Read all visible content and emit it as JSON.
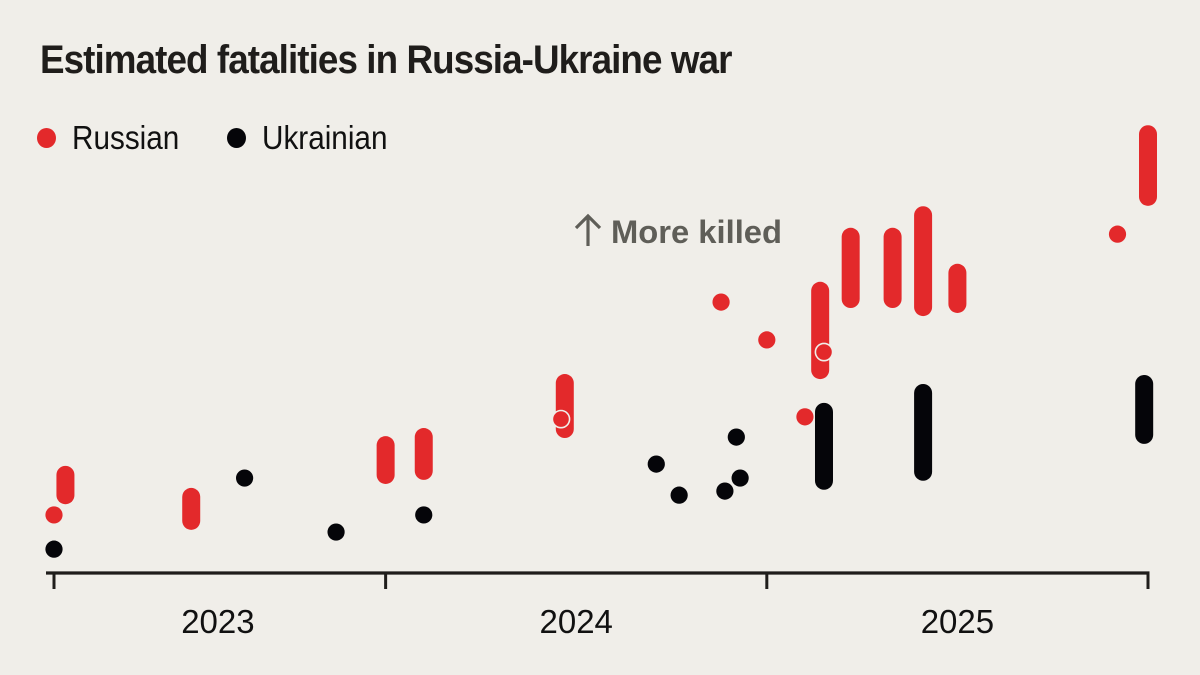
{
  "chart_data": {
    "type": "scatter",
    "title": "Estimated fatalities in Russia-Ukraine war",
    "xlabel": "",
    "ylabel": "",
    "annotation": "More killed",
    "annotation_icon": "arrow-up-icon",
    "x_range": [
      2023.13,
      2026.0
    ],
    "y_range": [
      0,
      100
    ],
    "y_unit": "relative (no y-axis shown)",
    "x_ticks": [
      2023.13,
      2024.0,
      2025.0,
      2026.0
    ],
    "x_tick_labels": [
      {
        "label": "2023",
        "at": 2023.56
      },
      {
        "label": "2024",
        "at": 2024.5
      },
      {
        "label": "2025",
        "at": 2025.5
      }
    ],
    "grid": false,
    "legend_position": "top-left",
    "series": [
      {
        "name": "Russian",
        "color": "#e3292b",
        "points": [
          {
            "x": 2023.13,
            "y": 12.9
          },
          {
            "x": 2023.16,
            "low": 16.4,
            "high": 22.7
          },
          {
            "x": 2023.49,
            "low": 10.7,
            "high": 17.8
          },
          {
            "x": 2024.0,
            "low": 20.9,
            "high": 29.3
          },
          {
            "x": 2024.1,
            "low": 21.8,
            "high": 31.1
          },
          {
            "x": 2024.47,
            "low": 31.1,
            "high": 43.1
          },
          {
            "x": 2024.46,
            "y": 34.2,
            "outlined": true
          },
          {
            "x": 2024.88,
            "y": 60.2
          },
          {
            "x": 2025.0,
            "y": 51.8
          },
          {
            "x": 2025.1,
            "y": 34.7
          },
          {
            "x": 2025.14,
            "low": 44.2,
            "high": 63.6
          },
          {
            "x": 2025.15,
            "y": 49.1,
            "outlined": true
          },
          {
            "x": 2025.22,
            "low": 60.0,
            "high": 75.6
          },
          {
            "x": 2025.33,
            "low": 60.0,
            "high": 75.6
          },
          {
            "x": 2025.41,
            "low": 58.2,
            "high": 80.4
          },
          {
            "x": 2025.5,
            "low": 58.9,
            "high": 67.6
          },
          {
            "x": 2025.92,
            "y": 75.3
          },
          {
            "x": 2026.0,
            "low": 82.7,
            "high": 98.4
          }
        ]
      },
      {
        "name": "Ukrainian",
        "color": "#050509",
        "points": [
          {
            "x": 2023.13,
            "y": 5.3
          },
          {
            "x": 2023.63,
            "y": 21.1
          },
          {
            "x": 2023.87,
            "y": 9.1
          },
          {
            "x": 2024.1,
            "y": 12.9
          },
          {
            "x": 2024.71,
            "y": 24.2
          },
          {
            "x": 2024.77,
            "y": 17.3
          },
          {
            "x": 2024.89,
            "y": 18.2
          },
          {
            "x": 2024.93,
            "y": 21.1
          },
          {
            "x": 2024.92,
            "y": 30.2
          },
          {
            "x": 2025.15,
            "low": 19.6,
            "high": 36.7
          },
          {
            "x": 2025.41,
            "low": 21.6,
            "high": 40.9
          },
          {
            "x": 2025.99,
            "low": 29.8,
            "high": 42.9
          }
        ]
      }
    ]
  },
  "colors": {
    "background": "#f0eee9",
    "russian": "#e3292b",
    "ukrainian": "#050509",
    "annotation": "#5f5e58",
    "axis": "#1f1d1b"
  }
}
